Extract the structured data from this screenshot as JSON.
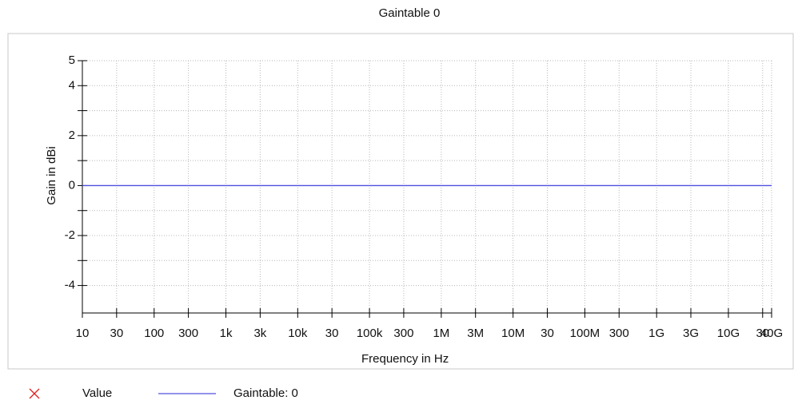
{
  "chart_data": {
    "type": "line",
    "title": "Gaintable 0",
    "x_label": "Frequency in Hz",
    "y_label": "Gain in dBi",
    "x_log": true,
    "grid": true,
    "xlim": [
      10,
      40000000000
    ],
    "ylim": [
      -5.1,
      5
    ],
    "xticks": [
      10,
      30,
      100,
      300,
      {
        "value": 1000,
        "label": "1k"
      },
      {
        "value": 3000,
        "label": "3k"
      },
      {
        "value": 10000,
        "label": "10k"
      },
      {
        "value": 30000,
        "label": "30"
      },
      {
        "value": 100000,
        "label": "100k"
      },
      {
        "value": 300000,
        "label": "300"
      },
      {
        "value": 1000000,
        "label": "1M"
      },
      {
        "value": 3000000,
        "label": "3M"
      },
      {
        "value": 10000000,
        "label": "10M"
      },
      {
        "value": 30000000,
        "label": "30"
      },
      {
        "value": 100000000,
        "label": "100M"
      },
      {
        "value": 300000000,
        "label": "300"
      },
      {
        "value": 1000000000,
        "label": "1G"
      },
      {
        "value": 3000000000,
        "label": "3G"
      },
      {
        "value": 10000000000,
        "label": "10G"
      },
      {
        "value": 30000000000,
        "label": "30"
      },
      {
        "value": 40000000000,
        "label": "40G"
      }
    ],
    "yticks": [
      5,
      4,
      2,
      0,
      -2,
      -4
    ],
    "y_minor_ticks": [
      3,
      1,
      -1,
      -3
    ],
    "series": [
      {
        "name": "Value",
        "color": "#e02020",
        "marker": "x",
        "x": [],
        "values": []
      },
      {
        "name": "Gaintable: 0",
        "color": "#5050e0",
        "x": [
          10,
          40000000000
        ],
        "values": [
          0,
          0
        ]
      }
    ]
  }
}
